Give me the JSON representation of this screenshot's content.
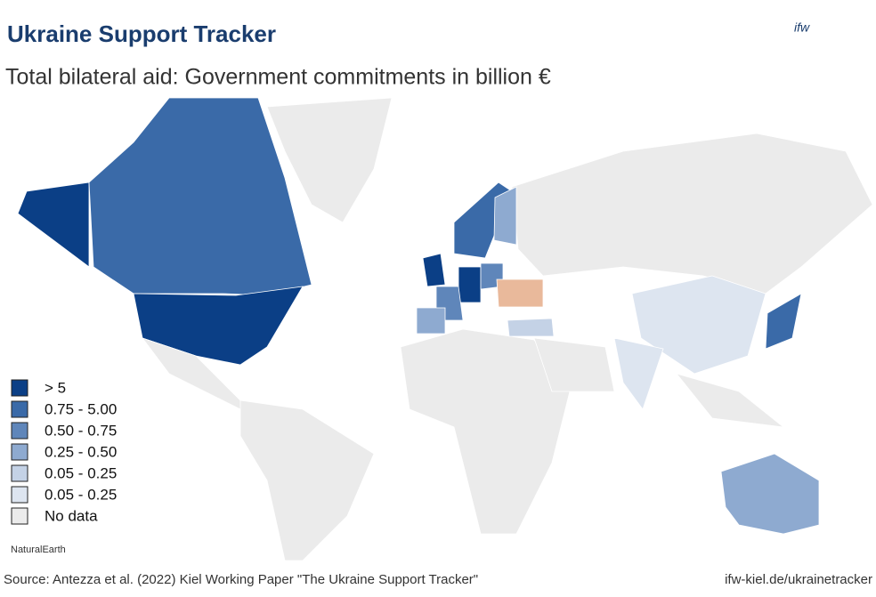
{
  "header": {
    "title": "Ukraine Support Tracker",
    "subtitle": "Total bilateral aid: Government commitments in billion €",
    "logo": "ifw"
  },
  "legend": {
    "items": [
      {
        "label": "> 5",
        "color": "#0b3f86"
      },
      {
        "label": "0.75 - 5.00",
        "color": "#3a6aa8"
      },
      {
        "label": "0.50 - 0.75",
        "color": "#5f86ba"
      },
      {
        "label": "0.25 - 0.50",
        "color": "#8eaad0"
      },
      {
        "label": "0.05 - 0.25",
        "color": "#c4d2e6"
      },
      {
        "label": "0.05 - 0.25",
        "color": "#dde5f0"
      },
      {
        "label": "No data",
        "color": "#ebebeb"
      }
    ]
  },
  "attribution": "NaturalEarth",
  "footer": {
    "source": "Source: Antezza et al. (2022) Kiel Working Paper \"The Ukraine Support Tracker\"",
    "url": "ifw-kiel.de/ukrainetracker"
  }
}
